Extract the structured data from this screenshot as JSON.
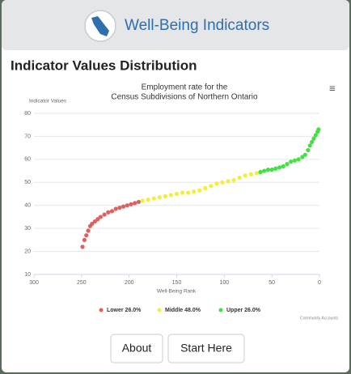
{
  "header": {
    "title": "Well-Being Indicators"
  },
  "section_title": "Indicator Values Distribution",
  "chart_data": {
    "type": "scatter",
    "title": [
      "Employment rate for the",
      "Census Subdivisions of Northern Ontario"
    ],
    "y_label": "Indicator Values",
    "x_label": "Well-Being Rank",
    "credits": "Community Accounts",
    "xlim": [
      300,
      0
    ],
    "xticks": [
      300,
      250,
      200,
      150,
      100,
      50,
      0
    ],
    "ylim": [
      10,
      80
    ],
    "yticks": [
      10,
      20,
      30,
      40,
      50,
      60,
      70,
      80
    ],
    "grid": true,
    "legend": "bottom",
    "series": [
      {
        "name": "Lower 26.0%",
        "color": "#e0605f",
        "x": [
          249,
          247,
          245,
          243,
          241,
          239,
          236,
          233,
          230,
          226,
          222,
          218,
          214,
          210,
          206,
          202,
          198,
          194,
          190
        ],
        "values": [
          22,
          25,
          27,
          29,
          31,
          32,
          33,
          34,
          35,
          36,
          37,
          37.5,
          38.5,
          39,
          39.5,
          40,
          40.5,
          41,
          41.5
        ]
      },
      {
        "name": "Middle 48.0%",
        "color": "#f2ee3c",
        "x": [
          186,
          180,
          174,
          168,
          162,
          156,
          150,
          144,
          138,
          132,
          126,
          120,
          114,
          108,
          102,
          96,
          90,
          84,
          78,
          72,
          66
        ],
        "values": [
          42,
          42.5,
          43,
          43.5,
          44,
          44.5,
          45,
          45.5,
          45.5,
          46,
          46.5,
          47.5,
          48.5,
          49.5,
          50,
          50.5,
          51,
          52,
          53,
          53.5,
          54
        ]
      },
      {
        "name": "Upper 26.0%",
        "color": "#3fe23f",
        "x": [
          62,
          58,
          54,
          50,
          46,
          42,
          38,
          34,
          30,
          26,
          22,
          18,
          15,
          12,
          10,
          8,
          6,
          4,
          2,
          1
        ],
        "values": [
          54.5,
          55,
          55.5,
          55.5,
          56,
          56.5,
          57,
          58,
          59,
          59.5,
          60,
          61,
          62,
          64,
          66,
          67.5,
          69,
          70.5,
          72,
          73
        ]
      }
    ]
  },
  "buttons": [
    "About",
    "Start Here"
  ]
}
